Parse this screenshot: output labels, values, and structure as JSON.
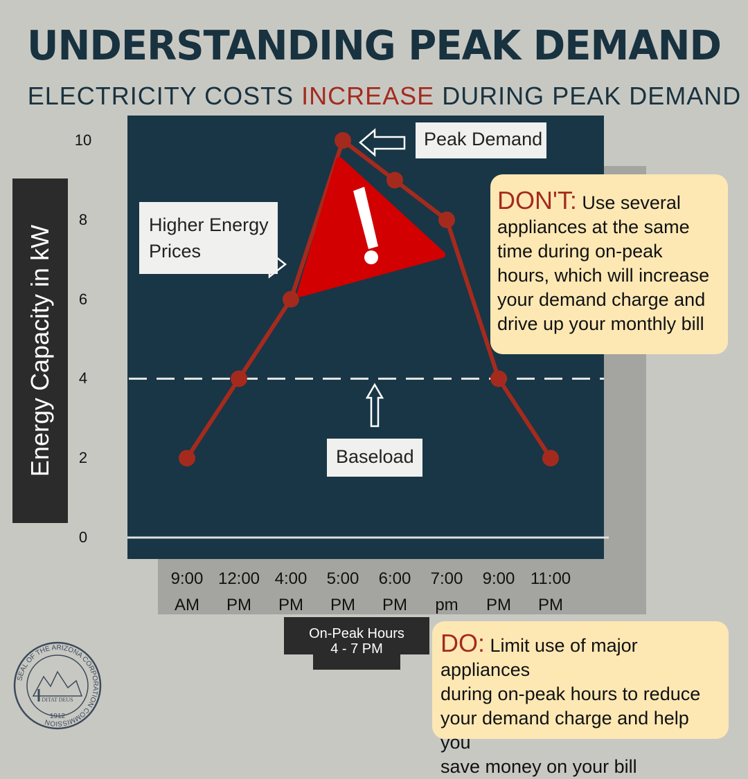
{
  "title": "UNDERSTANDING PEAK DEMAND",
  "subtitle": {
    "before": "ELECTRICITY COSTS ",
    "highlight": "INCREASE",
    "after": " DURING PEAK DEMAND"
  },
  "colors": {
    "background": "#c8c8c3",
    "panel": "#183646",
    "line": "#a52a1e",
    "warning": "#d20000",
    "tip_bg": "#fde8b4",
    "title": "#18323f"
  },
  "annotations": {
    "peak_demand": "Peak Demand",
    "higher_energy_prices_line1": "Higher Energy",
    "higher_energy_prices_line2": "Prices",
    "baseload": "Baseload"
  },
  "on_peak": {
    "line1": "On-Peak Hours",
    "line2": "4 - 7 PM"
  },
  "dont_tip": {
    "head": "DON'T:",
    "text_line1": " Use several",
    "text_rest": [
      "appliances at the same",
      "time during on-peak",
      "hours, which will increase",
      "your demand charge and",
      "drive up your monthly bill"
    ]
  },
  "do_tip": {
    "head": "DO:",
    "text_line1": " Limit use of major appliances",
    "text_rest": [
      "during on-peak hours to reduce",
      "your demand charge and help you",
      "save money on your bill"
    ]
  },
  "seal": {
    "ring_text": "SEAL OF THE ARIZONA CORPORATION COMMISSION",
    "motto": "DITAT DEUS",
    "year": "1912",
    "icon": "seal-icon"
  },
  "chart_data": {
    "type": "line",
    "ylabel": "Energy Capacity in kW",
    "xlabel": "",
    "ylim": [
      0,
      10
    ],
    "yticks": [
      0,
      2,
      4,
      6,
      8,
      10
    ],
    "categories": [
      [
        "9:00",
        "AM"
      ],
      [
        "12:00",
        "PM"
      ],
      [
        "4:00",
        "PM"
      ],
      [
        "5:00",
        "PM"
      ],
      [
        "6:00",
        "PM"
      ],
      [
        "7:00",
        "pm"
      ],
      [
        "9:00",
        "PM"
      ],
      [
        "11:00",
        "PM"
      ]
    ],
    "series": [
      {
        "values": [
          2,
          4,
          6,
          10,
          9,
          8,
          4,
          2
        ]
      }
    ],
    "baseload": 4,
    "grid": false
  }
}
